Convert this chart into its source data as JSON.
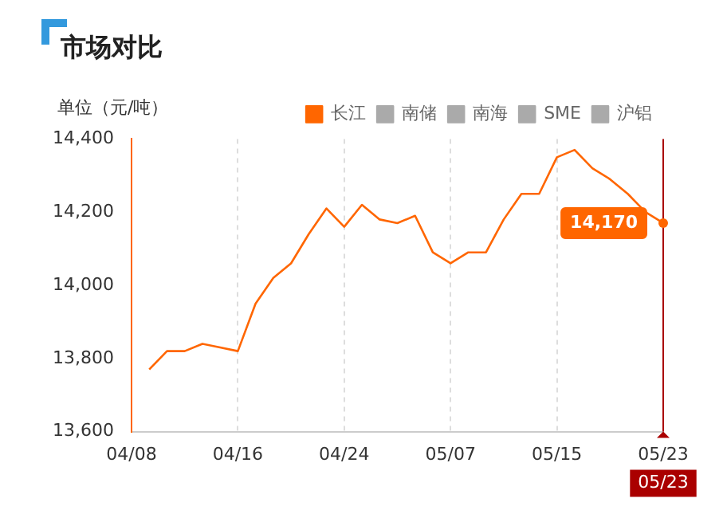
{
  "chart_data": {
    "type": "line",
    "title": "市场对比",
    "ylabel": "单位（元/吨）",
    "categories": [
      "04/08",
      null,
      null,
      null,
      null,
      null,
      "04/16",
      null,
      null,
      null,
      null,
      null,
      "04/24",
      null,
      null,
      null,
      null,
      null,
      "05/07",
      null,
      null,
      null,
      null,
      null,
      "05/15",
      null,
      null,
      null,
      null,
      null,
      "05/23"
    ],
    "series": [
      {
        "name": "长江",
        "color": "#ff6600",
        "values": [
          null,
          13770,
          13820,
          13820,
          13840,
          13830,
          13820,
          13950,
          14020,
          14060,
          14140,
          14210,
          14160,
          14220,
          14180,
          14170,
          14190,
          14090,
          14060,
          14090,
          14090,
          14180,
          14250,
          14250,
          14350,
          14370,
          14320,
          14290,
          14250,
          14200,
          14170
        ]
      },
      {
        "name": "南储",
        "color": "#aaaaaa",
        "values": [
          null,
          null,
          null,
          null,
          null,
          null,
          null,
          null,
          null,
          null,
          null,
          null,
          null,
          null,
          null,
          null,
          null,
          null,
          null,
          null,
          null,
          null,
          null,
          null,
          null,
          null,
          null,
          null,
          null,
          null,
          null
        ]
      },
      {
        "name": "南海",
        "color": "#aaaaaa",
        "values": [
          null,
          null,
          null,
          null,
          null,
          null,
          null,
          null,
          null,
          null,
          null,
          null,
          null,
          null,
          null,
          null,
          null,
          null,
          null,
          null,
          null,
          null,
          null,
          null,
          null,
          null,
          null,
          null,
          null,
          null,
          null
        ]
      },
      {
        "name": "SME",
        "color": "#aaaaaa",
        "values": [
          null,
          null,
          null,
          null,
          null,
          null,
          null,
          null,
          null,
          null,
          null,
          null,
          null,
          null,
          null,
          null,
          null,
          null,
          null,
          null,
          null,
          null,
          null,
          null,
          null,
          null,
          null,
          null,
          null,
          null,
          null
        ]
      },
      {
        "name": "沪铝",
        "color": "#aaaaaa",
        "values": [
          null,
          null,
          null,
          null,
          null,
          null,
          null,
          null,
          null,
          null,
          null,
          null,
          null,
          null,
          null,
          null,
          null,
          null,
          null,
          null,
          null,
          null,
          null,
          null,
          null,
          null,
          null,
          null,
          null,
          null,
          null
        ]
      }
    ],
    "ylim": [
      13600,
      14400
    ],
    "yticks": [
      {
        "value": 13600,
        "label": "13,600"
      },
      {
        "value": 13800,
        "label": "13,800"
      },
      {
        "value": 14000,
        "label": "14,000"
      },
      {
        "value": 14200,
        "label": "14,200"
      },
      {
        "value": 14400,
        "label": "14,400"
      }
    ],
    "grid": "x",
    "legend": "top",
    "marker": "none",
    "line_style": "solid",
    "annotations": [
      {
        "text": "14,170",
        "x": "05/23",
        "y": 14170
      }
    ],
    "ref_lines": [
      {
        "axis": "x",
        "value": "05/23",
        "label": "05/23",
        "color": "#aa0000"
      }
    ]
  }
}
